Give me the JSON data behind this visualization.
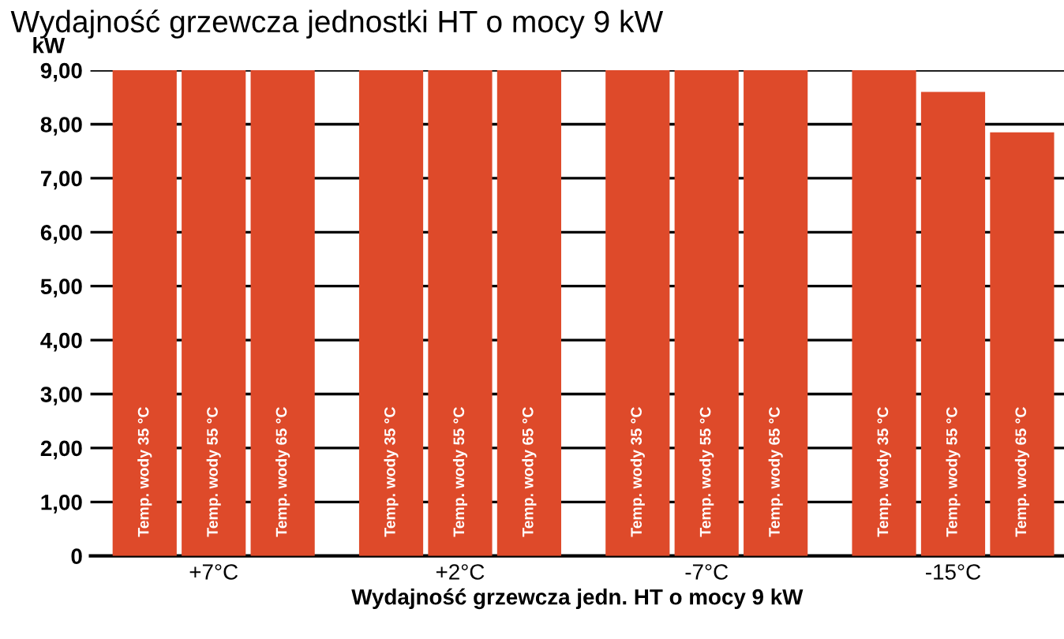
{
  "chart_data": {
    "type": "bar",
    "title": "Wydajność grzewcza jednostki HT o mocy 9 kW",
    "ylabel": "kW",
    "xlabel": "Wydajność grzewcza jedn. HT o mocy 9 kW",
    "categories": [
      "+7°C",
      "+2°C",
      "-7°C",
      "-15°C"
    ],
    "series": [
      {
        "name": "Temp. wody 35 °C",
        "color": "#de4a2a",
        "values": [
          9.0,
          9.0,
          9.0,
          9.0
        ]
      },
      {
        "name": "Temp. wody 55 °C",
        "color": "#de4a2a",
        "values": [
          9.0,
          9.0,
          9.0,
          8.6
        ]
      },
      {
        "name": "Temp. wody 65 °C",
        "color": "#de4a2a",
        "values": [
          9.0,
          9.0,
          9.0,
          7.85
        ]
      }
    ],
    "ylim": [
      0,
      9
    ],
    "yticks": [
      0,
      {
        "value": 1,
        "label": "1,00"
      },
      {
        "value": 2,
        "label": "2,00"
      },
      {
        "value": 3,
        "label": "3,00"
      },
      {
        "value": 4,
        "label": "4,00"
      },
      {
        "value": 5,
        "label": "5,00"
      },
      {
        "value": 6,
        "label": "6,00"
      },
      {
        "value": 7,
        "label": "7,00"
      },
      {
        "value": 8,
        "label": "8,00"
      },
      {
        "value": 9,
        "label": "9,00"
      }
    ],
    "grid": "y",
    "legend": false
  }
}
